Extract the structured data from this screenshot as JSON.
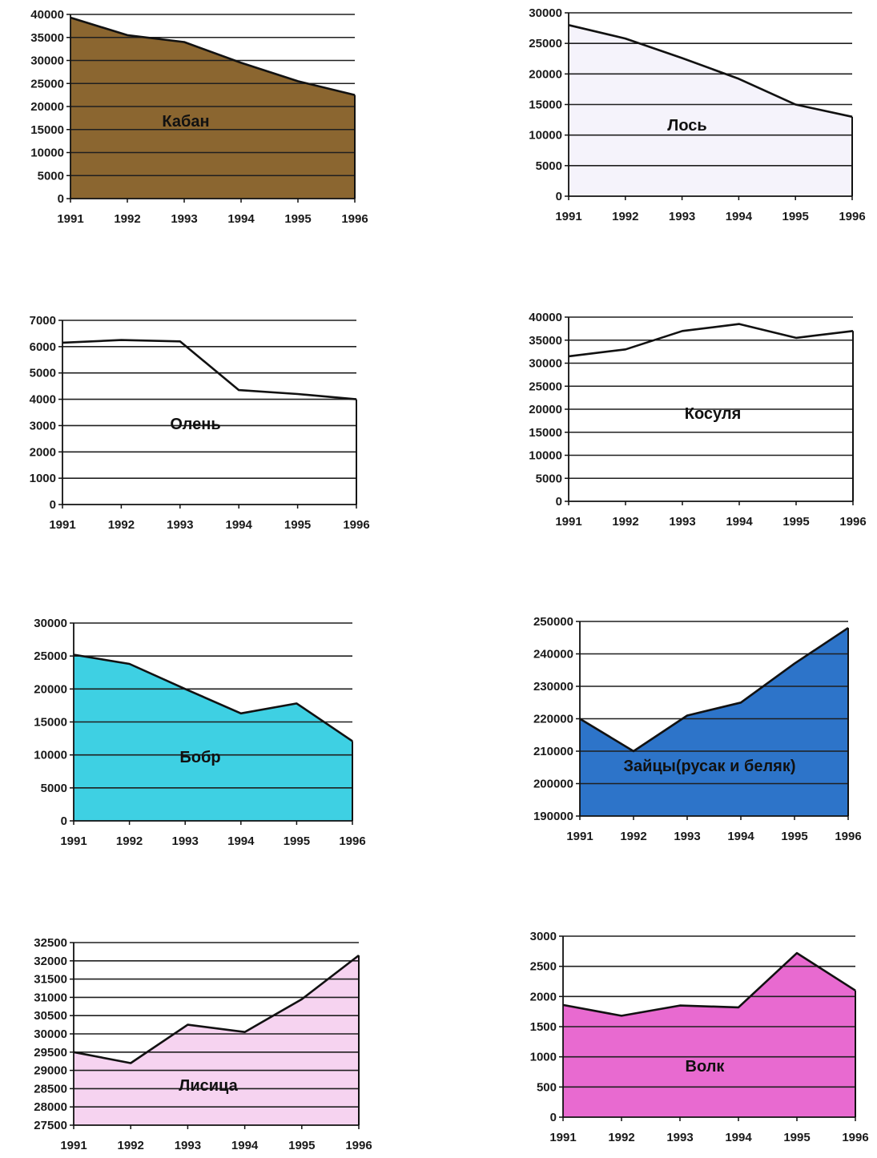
{
  "chart_data": [
    {
      "type": "area",
      "label": "Кабан",
      "x": [
        "1991",
        "1992",
        "1993",
        "1994",
        "1995",
        "1996"
      ],
      "values": [
        39300,
        35500,
        34000,
        29500,
        25500,
        22500
      ],
      "ylim": [
        0,
        40000
      ],
      "yticks": [
        0,
        5000,
        10000,
        15000,
        20000,
        25000,
        30000,
        35000,
        40000
      ],
      "grid": true,
      "fill": "#8b6630"
    },
    {
      "type": "area",
      "label": "Лось",
      "x": [
        "1991",
        "1992",
        "1993",
        "1994",
        "1995",
        "1996"
      ],
      "values": [
        28000,
        25800,
        22600,
        19200,
        15000,
        13000
      ],
      "ylim": [
        0,
        30000
      ],
      "yticks": [
        0,
        5000,
        10000,
        15000,
        20000,
        25000,
        30000
      ],
      "grid": true,
      "fill": "#f5f3fb"
    },
    {
      "type": "area",
      "label": "Олень",
      "x": [
        "1991",
        "1992",
        "1993",
        "1994",
        "1995",
        "1996"
      ],
      "values": [
        6150,
        6250,
        6200,
        4350,
        4200,
        4000
      ],
      "ylim": [
        0,
        7000
      ],
      "yticks": [
        0,
        1000,
        2000,
        3000,
        4000,
        5000,
        6000,
        7000
      ],
      "grid": true,
      "fill": "#ffffff"
    },
    {
      "type": "area",
      "label": "Косуля",
      "x": [
        "1991",
        "1992",
        "1993",
        "1994",
        "1995",
        "1996"
      ],
      "values": [
        31500,
        33000,
        37000,
        38500,
        35500,
        37000
      ],
      "ylim": [
        0,
        40000
      ],
      "yticks": [
        0,
        5000,
        10000,
        15000,
        20000,
        25000,
        30000,
        35000,
        40000
      ],
      "grid": true,
      "fill": "#ffffff"
    },
    {
      "type": "area",
      "label": "Бобр",
      "x": [
        "1991",
        "1992",
        "1993",
        "1994",
        "1995",
        "1996"
      ],
      "values": [
        25200,
        23800,
        20000,
        16300,
        17800,
        12100
      ],
      "ylim": [
        0,
        30000
      ],
      "yticks": [
        0,
        5000,
        10000,
        15000,
        20000,
        25000,
        30000
      ],
      "grid": true,
      "fill": "#3ed0e3"
    },
    {
      "type": "area",
      "label": "Зайцы(русак и беляк)",
      "x": [
        "1991",
        "1992",
        "1993",
        "1994",
        "1995",
        "1996"
      ],
      "values": [
        220000,
        210000,
        221000,
        225000,
        237000,
        248000
      ],
      "ylim": [
        190000,
        250000
      ],
      "yticks": [
        190000,
        200000,
        210000,
        220000,
        230000,
        240000,
        250000
      ],
      "grid": true,
      "fill": "#2d74c9"
    },
    {
      "type": "area",
      "label": "Лисица",
      "x": [
        "1991",
        "1992",
        "1993",
        "1994",
        "1995",
        "1996"
      ],
      "values": [
        29500,
        29200,
        30250,
        30050,
        30950,
        32150
      ],
      "ylim": [
        27500,
        32500
      ],
      "yticks": [
        27500,
        28000,
        28500,
        29000,
        29500,
        30000,
        30500,
        31000,
        31500,
        32000,
        32500
      ],
      "ytick_labels": [
        "27500",
        "28000",
        "28500",
        "29000",
        "29500",
        "30000",
        "30500",
        "31000",
        "31500",
        "32000",
        "32500"
      ],
      "grid": true,
      "fill": "#f6d3f0"
    },
    {
      "type": "area",
      "label": "Волк",
      "x": [
        "1991",
        "1992",
        "1993",
        "1994",
        "1995",
        "1996"
      ],
      "values": [
        1860,
        1680,
        1850,
        1820,
        2720,
        2100
      ],
      "ylim": [
        0,
        3000
      ],
      "yticks": [
        0,
        500,
        1000,
        1500,
        2000,
        2500,
        3000
      ],
      "grid": true,
      "fill": "#e86ad0"
    }
  ]
}
